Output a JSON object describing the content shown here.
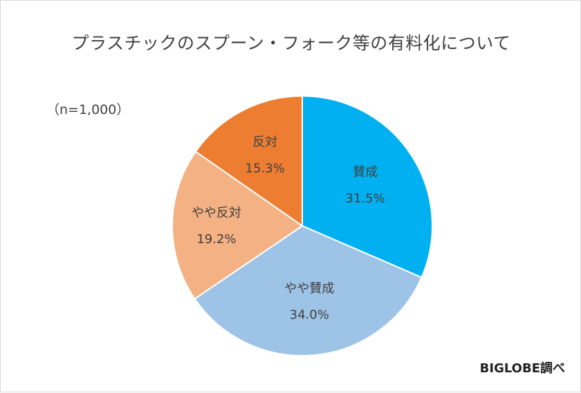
{
  "chart_data": {
    "type": "pie",
    "title": "プラスチックのスプーン・フォーク等の有料化について",
    "sample_note": "（n=1,000）",
    "source": "BIGLOBE調べ",
    "slices": [
      {
        "label": "賛成",
        "value": 31.5,
        "value_label": "31.5%",
        "color": "#00b0f0"
      },
      {
        "label": "やや賛成",
        "value": 34.0,
        "value_label": "34.0%",
        "color": "#9dc3e6"
      },
      {
        "label": "やや反対",
        "value": 19.2,
        "value_label": "19.2%",
        "color": "#f4b183"
      },
      {
        "label": "反対",
        "value": 15.3,
        "value_label": "15.3%",
        "color": "#ed7d31"
      }
    ],
    "start_angle": "12 o'clock",
    "direction": "clockwise",
    "legend": "none"
  }
}
